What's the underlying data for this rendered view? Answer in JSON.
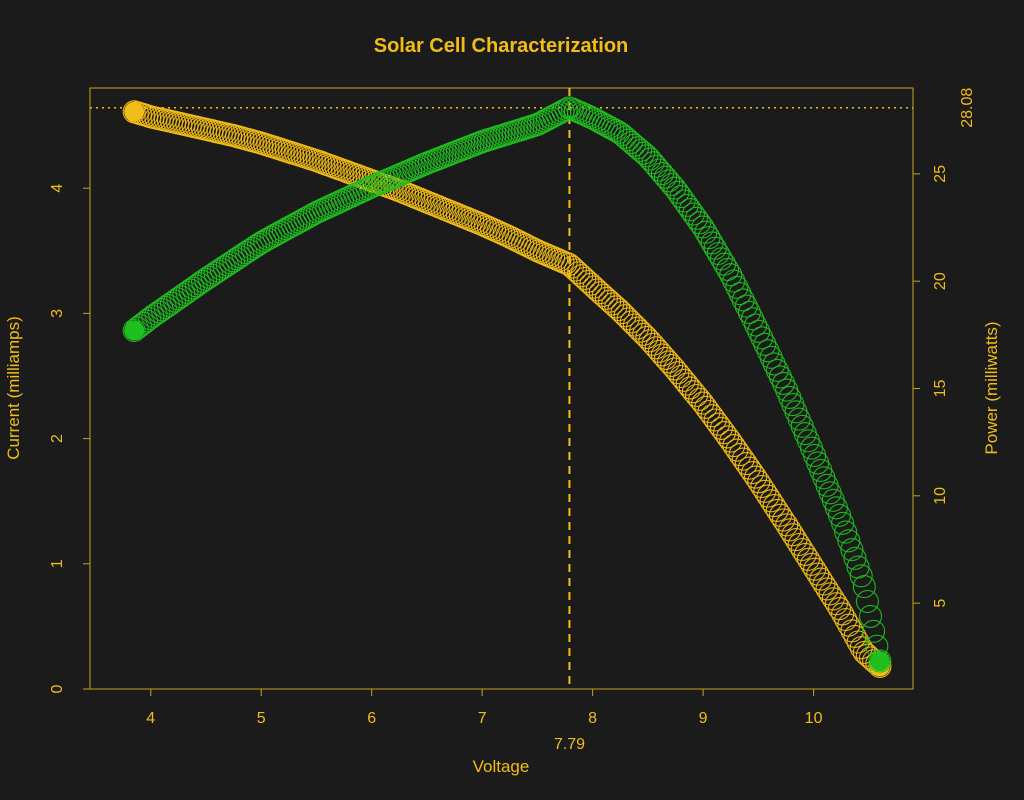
{
  "chart_data": {
    "type": "scatter",
    "title": "Solar Cell Characterization",
    "xlabel": "Voltage",
    "ylabel": "Current (milliamps)",
    "y2label": "Power (milliwatts)",
    "xlim": [
      3.45,
      10.9
    ],
    "ylim": [
      0,
      4.8
    ],
    "y2lim": [
      1.0,
      29.0
    ],
    "xticks": [
      4,
      5,
      6,
      7,
      8,
      9,
      10
    ],
    "yticks": [
      0,
      1,
      2,
      3,
      4
    ],
    "y2ticks": [
      5,
      10,
      15,
      20,
      25
    ],
    "max_power_voltage": 7.79,
    "max_power_voltage_label": "7.79",
    "max_power": 28.08,
    "max_power_label": "28.08",
    "series": [
      {
        "name": "Current",
        "axis": "left",
        "color": "#f2bd16",
        "points": [
          [
            3.85,
            4.61
          ],
          [
            4.0,
            4.57
          ],
          [
            4.25,
            4.52
          ],
          [
            4.5,
            4.47
          ],
          [
            4.75,
            4.42
          ],
          [
            5.0,
            4.36
          ],
          [
            5.25,
            4.29
          ],
          [
            5.5,
            4.22
          ],
          [
            5.75,
            4.14
          ],
          [
            6.0,
            4.06
          ],
          [
            6.25,
            3.98
          ],
          [
            6.5,
            3.89
          ],
          [
            6.75,
            3.8
          ],
          [
            7.0,
            3.71
          ],
          [
            7.25,
            3.61
          ],
          [
            7.5,
            3.5
          ],
          [
            7.79,
            3.39
          ],
          [
            8.0,
            3.22
          ],
          [
            8.25,
            3.02
          ],
          [
            8.5,
            2.8
          ],
          [
            8.75,
            2.55
          ],
          [
            9.0,
            2.28
          ],
          [
            9.25,
            1.98
          ],
          [
            9.5,
            1.66
          ],
          [
            9.75,
            1.32
          ],
          [
            10.0,
            0.97
          ],
          [
            10.25,
            0.62
          ],
          [
            10.45,
            0.3
          ],
          [
            10.6,
            0.18
          ]
        ]
      },
      {
        "name": "Power",
        "axis": "right",
        "color": "#1fbf1f",
        "points": [
          [
            3.85,
            17.7
          ],
          [
            4.0,
            18.3
          ],
          [
            4.5,
            20.1
          ],
          [
            5.0,
            21.8
          ],
          [
            5.5,
            23.2
          ],
          [
            6.0,
            24.4
          ],
          [
            6.5,
            25.5
          ],
          [
            7.0,
            26.5
          ],
          [
            7.5,
            27.3
          ],
          [
            7.79,
            28.08
          ],
          [
            8.0,
            27.6
          ],
          [
            8.25,
            26.9
          ],
          [
            8.5,
            25.8
          ],
          [
            8.75,
            24.3
          ],
          [
            9.0,
            22.5
          ],
          [
            9.25,
            20.3
          ],
          [
            9.5,
            17.7
          ],
          [
            9.75,
            15.0
          ],
          [
            10.0,
            12.0
          ],
          [
            10.25,
            8.9
          ],
          [
            10.45,
            6.0
          ],
          [
            10.6,
            2.3
          ]
        ]
      }
    ]
  }
}
